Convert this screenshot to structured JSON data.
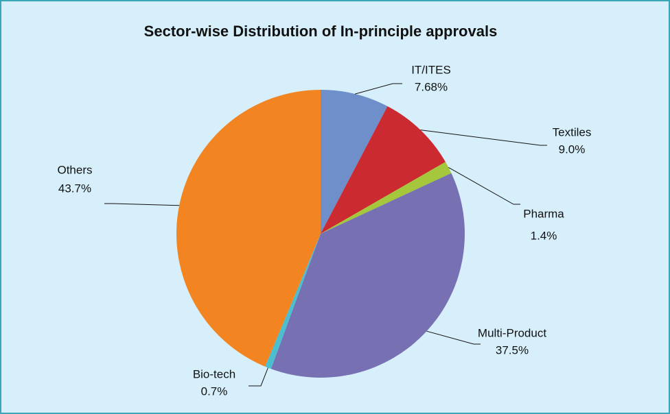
{
  "chart_data": {
    "type": "pie",
    "title": "Sector-wise Distribution of In-principle approvals",
    "categories": [
      "IT/ITES",
      "Textiles",
      "Pharma",
      "Multi-Product",
      "Bio-tech",
      "Others"
    ],
    "values": [
      7.68,
      9.0,
      1.4,
      37.5,
      0.7,
      43.7
    ],
    "value_labels": [
      "7.68%",
      "9.0%",
      "1.4%",
      "37.5%",
      "0.7%",
      "43.7%"
    ],
    "colors": [
      "#6f8fca",
      "#cc2a31",
      "#a5c73b",
      "#7771b3",
      "#4cbfcf",
      "#f28522"
    ]
  }
}
